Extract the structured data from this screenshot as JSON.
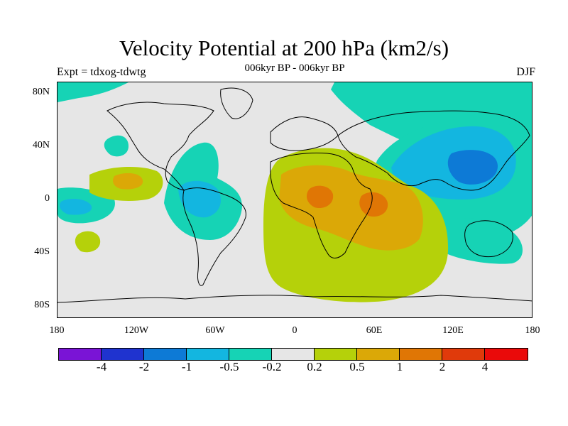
{
  "title": "Velocity Potential at 200 hPa (km2/s)",
  "subtitle": "006kyr BP - 006kyr BP",
  "left_label": "Expt = tdxog-tdwtg",
  "right_label": "DJF",
  "map": {
    "lat_labels": [
      "80N",
      "40N",
      "0",
      "40S",
      "80S"
    ],
    "lon_labels": [
      "180",
      "120W",
      "60W",
      "0",
      "60E",
      "120E",
      "180"
    ],
    "lat_range": [
      -90,
      90
    ],
    "lon_range": [
      -180,
      180
    ],
    "background_color": "#e6e6e6"
  },
  "colorbar": {
    "colors": [
      "#7a14d6",
      "#1f33cf",
      "#0d7ad6",
      "#13b6e0",
      "#16d3b5",
      "#e6e6e6",
      "#b5d10a",
      "#dba807",
      "#e07605",
      "#e03a0b",
      "#ea0a0a"
    ],
    "labels": [
      "-4",
      "-2",
      "-1",
      "-0.5",
      "-0.2",
      "0.2",
      "0.5",
      "1",
      "2",
      "4"
    ]
  }
}
